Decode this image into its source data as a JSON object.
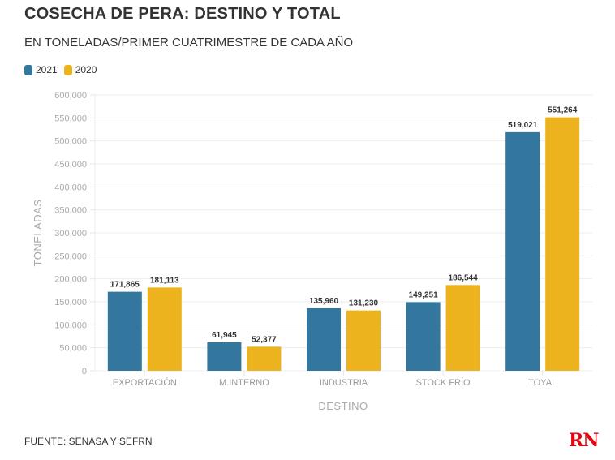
{
  "header": {
    "title": "COSECHA DE PERA: DESTINO Y TOTAL",
    "subtitle": "EN TONELADAS/PRIMER CUATRIMESTRE DE CADA AÑO"
  },
  "legend": [
    {
      "label": "2021",
      "color": "#33779e"
    },
    {
      "label": "2020",
      "color": "#edb31f"
    }
  ],
  "footer": {
    "source": "FUENTE: SENASA Y SEFRN",
    "logo": "RN"
  },
  "chart_data": {
    "type": "bar",
    "title": "COSECHA DE PERA: DESTINO Y TOTAL",
    "subtitle": "EN TONELADAS/PRIMER CUATRIMESTRE DE CADA AÑO",
    "xlabel": "DESTINO",
    "ylabel": "TONELADAS",
    "categories": [
      "EXPORTACIÓN",
      "M.INTERNO",
      "INDUSTRIA",
      "STOCK FRÍO",
      "TOYAL"
    ],
    "series": [
      {
        "name": "2021",
        "color": "#33779e",
        "values": [
          171865,
          61945,
          135960,
          149251,
          519021
        ]
      },
      {
        "name": "2020",
        "color": "#edb31f",
        "values": [
          181113,
          52377,
          131230,
          186544,
          551264
        ]
      }
    ],
    "value_labels": {
      "2021": [
        "171,865",
        "61,945",
        "135,960",
        "149,251",
        "519,021"
      ],
      "2020": [
        "181,113",
        "52,377",
        "131,230",
        "186,544",
        "551,264"
      ]
    },
    "ylim": [
      0,
      600000
    ],
    "yticks": [
      0,
      50000,
      100000,
      150000,
      200000,
      250000,
      300000,
      350000,
      400000,
      450000,
      500000,
      550000,
      600000
    ],
    "ytick_labels": [
      "0",
      "50,000",
      "100,000",
      "150,000",
      "200,000",
      "250,000",
      "300,000",
      "350,000",
      "400,000",
      "450,000",
      "500,000",
      "550,000",
      "600,000"
    ],
    "grid": true,
    "legend_position": "top-left"
  }
}
